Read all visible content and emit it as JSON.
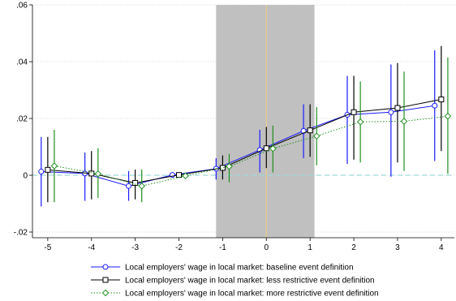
{
  "chart_data": {
    "type": "line",
    "title": "",
    "xlabel": "",
    "ylabel": "",
    "xlim": [
      -5.35,
      4.3
    ],
    "ylim": [
      -0.022,
      0.06
    ],
    "x_ticks": [
      {
        "value": -5,
        "label": "-5"
      },
      {
        "value": -4,
        "label": "-4"
      },
      {
        "value": -3,
        "label": "-3"
      },
      {
        "value": -2,
        "label": "-2"
      },
      {
        "value": -1,
        "label": "-1"
      },
      {
        "value": 0,
        "label": "0"
      },
      {
        "value": 1,
        "label": "1"
      },
      {
        "value": 2,
        "label": "2"
      },
      {
        "value": 3,
        "label": "3"
      },
      {
        "value": 4,
        "label": "4"
      }
    ],
    "y_ticks": [
      {
        "value": -0.02,
        "label": "-.02"
      },
      {
        "value": 0,
        "label": "0"
      },
      {
        "value": 0.02,
        "label": ".02"
      },
      {
        "value": 0.04,
        "label": ".04"
      },
      {
        "value": 0.06,
        "label": ".06"
      }
    ],
    "grid": "horizontal dotted",
    "shaded_region": {
      "x0": -1.15,
      "x1": 1.1,
      "color": "#c0c0c0"
    },
    "vertical_reference_line": {
      "x": 0,
      "color": "#e8c98a"
    },
    "horizontal_reference_line": {
      "y": 0,
      "color": "#9fd6d6"
    },
    "legend_position": "bottom",
    "series": [
      {
        "name": "Local employers' wage in local market: baseline event definition",
        "color": "#1a1aff",
        "marker": "circle",
        "line_style": "solid",
        "x": [
          -5.15,
          -4.15,
          -3.15,
          -2.15,
          -1.15,
          -0.15,
          0.85,
          1.85,
          2.85,
          3.85
        ],
        "y": [
          0.0013,
          0.0006,
          -0.0038,
          0.0001,
          0.0023,
          0.0089,
          0.0156,
          0.0213,
          0.0222,
          0.0245
        ],
        "ci_low": [
          -0.011,
          -0.009,
          -0.009,
          -0.0005,
          -0.0015,
          0.001,
          0.006,
          0.004,
          -0.0005,
          0.005
        ],
        "ci_high": [
          0.0135,
          0.008,
          0.0015,
          0.001,
          0.006,
          0.016,
          0.025,
          0.035,
          0.039,
          0.044
        ]
      },
      {
        "name": "Local employers' wage in local market: less restrictive event definition",
        "color": "#000000",
        "marker": "square",
        "line_style": "solid",
        "x": [
          -5,
          -4,
          -3,
          -2,
          -1,
          0,
          1,
          2,
          3,
          4
        ],
        "y": [
          0.0019,
          0.0006,
          -0.0027,
          0.0001,
          0.0026,
          0.0095,
          0.0158,
          0.0222,
          0.0237,
          0.0267
        ],
        "ci_low": [
          -0.0095,
          -0.0085,
          -0.0085,
          -0.0005,
          -0.0015,
          0.0025,
          0.0065,
          0.0055,
          0.0045,
          0.0085
        ],
        "ci_high": [
          0.0135,
          0.0085,
          0.002,
          0.001,
          0.007,
          0.017,
          0.025,
          0.035,
          0.0395,
          0.0455
        ]
      },
      {
        "name": "Local employers' wage in local market: more restrictive event definition",
        "color": "#1f8f1f",
        "marker": "diamond",
        "line_style": "dotted",
        "x": [
          -4.85,
          -3.85,
          -2.85,
          -1.85,
          -0.85,
          0.15,
          1.15,
          2.15,
          3.15,
          4.15
        ],
        "y": [
          0.0033,
          0.0005,
          -0.0038,
          -0.0002,
          0.0031,
          0.0094,
          0.0138,
          0.0188,
          0.019,
          0.0208
        ],
        "ci_low": [
          -0.0095,
          -0.008,
          -0.0095,
          -0.001,
          -0.0025,
          0.001,
          0.0035,
          0.0045,
          0.0015,
          0.0005
        ],
        "ci_high": [
          0.016,
          0.0095,
          0.002,
          0.0005,
          0.0075,
          0.0175,
          0.024,
          0.033,
          0.0365,
          0.0415
        ]
      }
    ]
  }
}
